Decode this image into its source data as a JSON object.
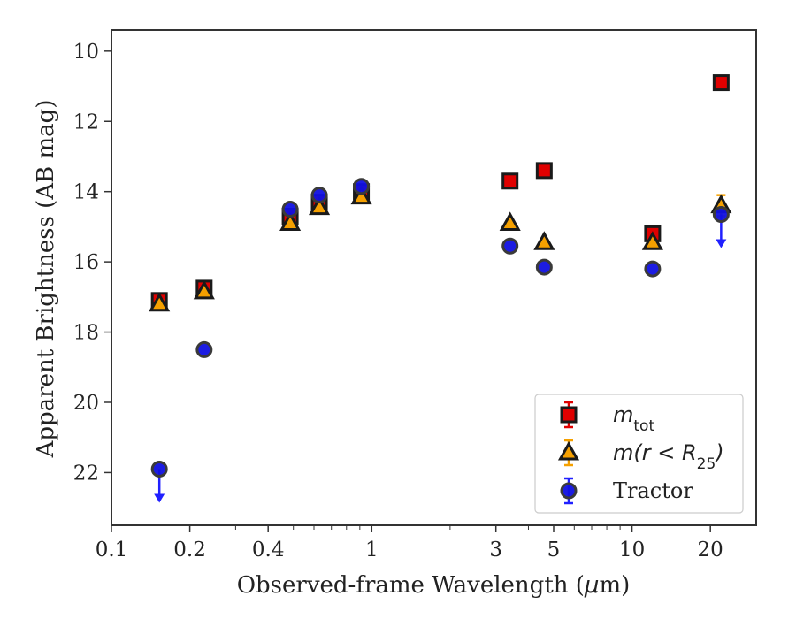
{
  "chart_data": {
    "type": "scatter",
    "xlabel_pre": "Observed-frame Wavelength (",
    "xlabel_mu": "μ",
    "xlabel_post": "m)",
    "ylabel": "Apparent Brightness (AB mag)",
    "x_scale": "log",
    "xlim": [
      0.1,
      30
    ],
    "ylim": [
      23.5,
      9.4
    ],
    "y_inverted": true,
    "grid": false,
    "legend_position": "lower-right",
    "x_ticks": [
      {
        "value": 0.1,
        "label": "0.1"
      },
      {
        "value": 0.2,
        "label": "0.2"
      },
      {
        "value": 0.4,
        "label": "0.4"
      },
      {
        "value": 1,
        "label": "1"
      },
      {
        "value": 3,
        "label": "3"
      },
      {
        "value": 5,
        "label": "5"
      },
      {
        "value": 10,
        "label": "10"
      },
      {
        "value": 20,
        "label": "20"
      }
    ],
    "y_ticks": [
      {
        "value": 10,
        "label": "10"
      },
      {
        "value": 12,
        "label": "12"
      },
      {
        "value": 14,
        "label": "14"
      },
      {
        "value": 16,
        "label": "16"
      },
      {
        "value": 18,
        "label": "18"
      },
      {
        "value": 20,
        "label": "20"
      },
      {
        "value": 22,
        "label": "22"
      }
    ],
    "series": [
      {
        "key": "mtot",
        "legend_main": "m",
        "legend_sub": "tot",
        "legend_tail": "",
        "marker": "square",
        "face_color": "#e00000",
        "edge_color": "#1a1a1a",
        "error_color": "#e00000",
        "points": [
          {
            "x": 0.1528,
            "y": 17.1,
            "err": 0.1
          },
          {
            "x": 0.2271,
            "y": 16.75,
            "err": 0.1
          },
          {
            "x": 0.4861,
            "y": 14.7,
            "err": 0.05
          },
          {
            "x": 0.6291,
            "y": 14.3,
            "err": 0.05
          },
          {
            "x": 0.9123,
            "y": 14.0,
            "err": 0.05
          },
          {
            "x": 3.4,
            "y": 13.7,
            "err": 0.05
          },
          {
            "x": 4.6,
            "y": 13.4,
            "err": 0.05
          },
          {
            "x": 12.0,
            "y": 15.2,
            "err": 0.05
          },
          {
            "x": 22.0,
            "y": 10.9,
            "err": 0.05
          }
        ]
      },
      {
        "key": "mr25",
        "legend_main": "m(r < R",
        "legend_sub": "25",
        "legend_tail": ")",
        "marker": "triangle",
        "face_color": "#f5a000",
        "edge_color": "#1a1a1a",
        "error_color": "#f5a000",
        "points": [
          {
            "x": 0.1528,
            "y": 17.2,
            "err": 0.1
          },
          {
            "x": 0.2271,
            "y": 16.85,
            "err": 0.1
          },
          {
            "x": 0.4861,
            "y": 14.9,
            "err": 0.05
          },
          {
            "x": 0.6291,
            "y": 14.45,
            "err": 0.05
          },
          {
            "x": 0.9123,
            "y": 14.15,
            "err": 0.05
          },
          {
            "x": 3.4,
            "y": 14.9,
            "err": 0.05
          },
          {
            "x": 4.6,
            "y": 15.45,
            "err": 0.05
          },
          {
            "x": 12.0,
            "y": 15.45,
            "err": 0.05
          },
          {
            "x": 22.0,
            "y": 14.4,
            "err": 0.3
          }
        ]
      },
      {
        "key": "tractor",
        "legend_main": "Tractor",
        "legend_sub": "",
        "legend_tail": "",
        "marker": "circle",
        "face_color": "#1010e0",
        "edge_color": "#3a3a3a",
        "error_color": "#2020ff",
        "points": [
          {
            "x": 0.1528,
            "y": 21.9,
            "err": 0.05,
            "upper_limit": true
          },
          {
            "x": 0.2271,
            "y": 18.5,
            "err": 0.05
          },
          {
            "x": 0.4861,
            "y": 14.5,
            "err": 0.05
          },
          {
            "x": 0.6291,
            "y": 14.1,
            "err": 0.05
          },
          {
            "x": 0.9123,
            "y": 13.85,
            "err": 0.05
          },
          {
            "x": 3.4,
            "y": 15.55,
            "err": 0.05
          },
          {
            "x": 4.6,
            "y": 16.15,
            "err": 0.05
          },
          {
            "x": 12.0,
            "y": 16.2,
            "err": 0.05
          },
          {
            "x": 22.0,
            "y": 14.65,
            "err": 0.05,
            "upper_limit": true
          }
        ]
      }
    ]
  }
}
